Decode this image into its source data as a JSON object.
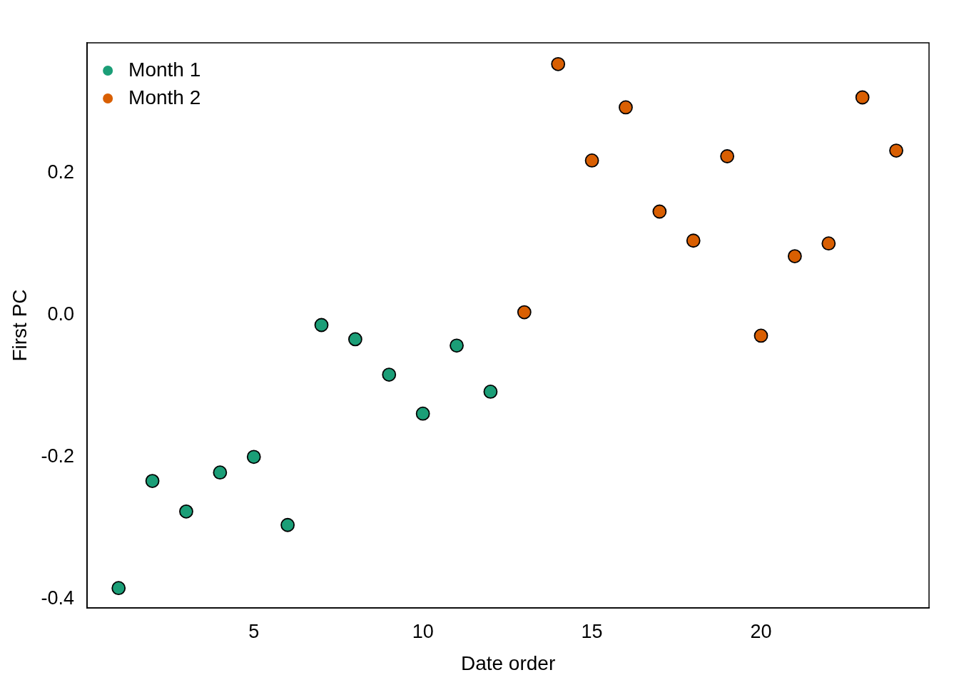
{
  "chart_data": {
    "type": "scatter",
    "x_label": "Date order",
    "y_label": "First PC",
    "xlim": [
      0.07,
      24.97
    ],
    "ylim": [
      -0.413,
      0.384
    ],
    "xticks": [
      5,
      10,
      15,
      20
    ],
    "yticks": [
      -0.4,
      -0.2,
      {
        "value": 0,
        "label": "0.0"
      },
      0.2
    ],
    "grid": false,
    "legend": "top left",
    "marker": "circle",
    "series": [
      {
        "name": "Month 1",
        "color": "#1b9e77",
        "x": [
          1,
          2,
          3,
          4,
          5,
          6,
          7,
          8,
          9,
          10,
          11,
          12
        ],
        "values": [
          -0.385,
          -0.234,
          -0.277,
          -0.222,
          -0.2,
          -0.296,
          -0.014,
          -0.034,
          -0.084,
          -0.139,
          -0.043,
          -0.108
        ]
      },
      {
        "name": "Month 2",
        "color": "#d95f02",
        "x": [
          13,
          14,
          15,
          16,
          17,
          18,
          19,
          20,
          21,
          22,
          23,
          24
        ],
        "values": [
          0.004,
          0.354,
          0.218,
          0.293,
          0.146,
          0.105,
          0.224,
          -0.029,
          0.083,
          0.101,
          0.307,
          0.232
        ]
      }
    ]
  }
}
